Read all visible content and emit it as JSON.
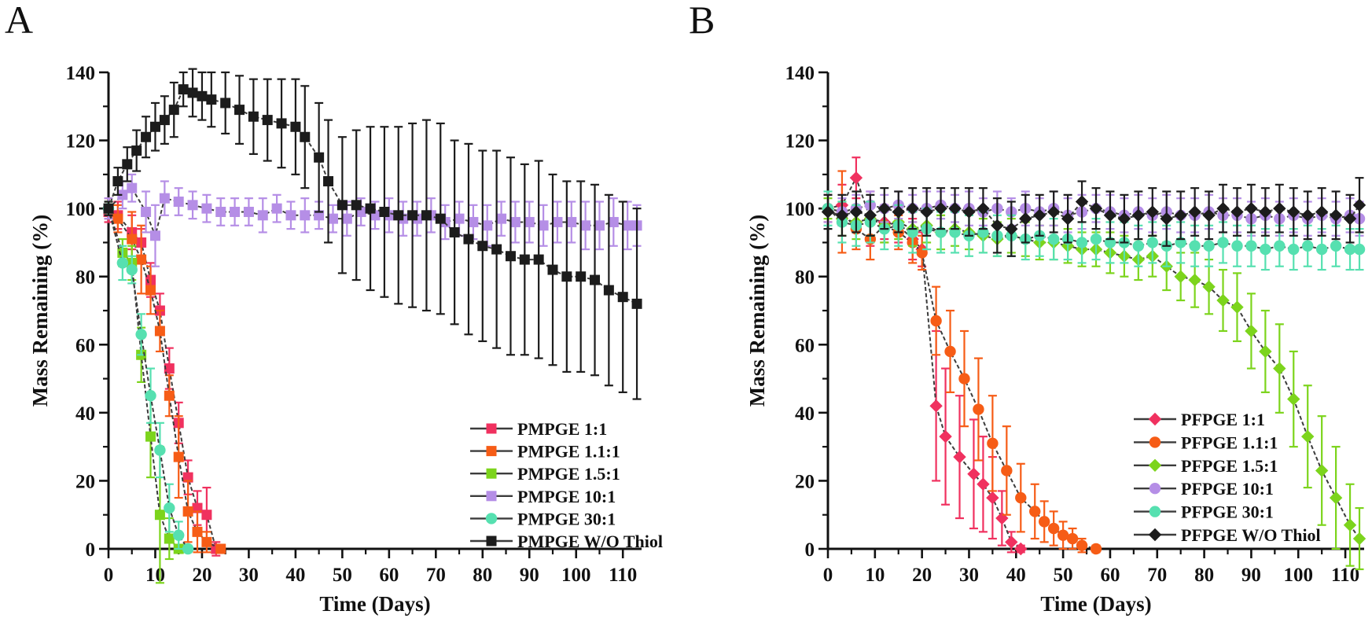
{
  "figure_background": "#ffffff",
  "line_color": "#3c3c3c",
  "chart_data": [
    {
      "type": "line",
      "panel_label": "A",
      "title": "",
      "xlabel": "Time (Days)",
      "ylabel": "Mass Remaining (%)",
      "xlim": [
        0,
        114
      ],
      "ylim": [
        0,
        140
      ],
      "xticks": [
        0,
        10,
        20,
        30,
        40,
        50,
        60,
        70,
        80,
        90,
        100,
        110
      ],
      "yticks": [
        0,
        20,
        40,
        60,
        80,
        100,
        120,
        140
      ],
      "grid": false,
      "legend_position": "inside lower right",
      "series": [
        {
          "name": "PMPGE 1:1",
          "color": "#f0315f",
          "marker": "square",
          "x": [
            0,
            2,
            5,
            7,
            9,
            11,
            13,
            15,
            17,
            19,
            21,
            23
          ],
          "y": [
            99,
            98,
            93,
            90,
            79,
            70,
            53,
            37,
            21,
            12,
            10,
            0
          ],
          "err": [
            3,
            4,
            5,
            4,
            5,
            5,
            6,
            6,
            5,
            5,
            8,
            2
          ]
        },
        {
          "name": "PMPGE 1.1:1",
          "color": "#f65c16",
          "marker": "square",
          "x": [
            0,
            2,
            5,
            7,
            9,
            11,
            13,
            15,
            17,
            19,
            21,
            24
          ],
          "y": [
            100,
            97,
            91,
            85,
            76,
            64,
            45,
            27,
            11,
            5,
            2,
            0
          ],
          "err": [
            3,
            4,
            8,
            10,
            7,
            6,
            6,
            12,
            9,
            6,
            3,
            1
          ]
        },
        {
          "name": "PMPGE 1.5:1",
          "color": "#7cd41c",
          "marker": "square",
          "x": [
            0,
            3,
            5,
            7,
            9,
            11,
            13,
            15
          ],
          "y": [
            100,
            87,
            84,
            57,
            33,
            10,
            3,
            0
          ],
          "err": [
            2,
            4,
            5,
            8,
            12,
            20,
            6,
            1
          ]
        },
        {
          "name": "PMPGE 10:1",
          "color": "#b58ee6",
          "marker": "square",
          "x": [
            0,
            3,
            5,
            8,
            10,
            12,
            15,
            18,
            21,
            24,
            27,
            30,
            33,
            36,
            39,
            42,
            45,
            48,
            51,
            54,
            57,
            60,
            63,
            66,
            69,
            72,
            75,
            78,
            81,
            84,
            87,
            90,
            93,
            96,
            99,
            102,
            105,
            108,
            111,
            113
          ],
          "y": [
            100,
            104,
            106,
            99,
            92,
            103,
            102,
            101,
            100,
            99,
            99,
            99,
            98,
            100,
            98,
            98,
            98,
            97,
            97,
            99,
            98,
            98,
            97,
            97,
            98,
            96,
            97,
            96,
            95,
            97,
            96,
            96,
            95,
            96,
            96,
            95,
            95,
            96,
            95,
            95
          ],
          "err": [
            3,
            4,
            4,
            6,
            9,
            5,
            4,
            4,
            4,
            4,
            4,
            4,
            5,
            4,
            4,
            5,
            4,
            4,
            5,
            4,
            4,
            5,
            5,
            5,
            5,
            5,
            5,
            5,
            6,
            5,
            6,
            6,
            6,
            6,
            6,
            7,
            7,
            7,
            7,
            6
          ]
        },
        {
          "name": "PMPGE 30:1",
          "color": "#56e0b0",
          "marker": "circle",
          "x": [
            0,
            3,
            5,
            7,
            9,
            11,
            13,
            15,
            17
          ],
          "y": [
            100,
            84,
            82,
            63,
            45,
            29,
            12,
            4,
            0
          ],
          "err": [
            2,
            5,
            4,
            6,
            8,
            8,
            7,
            4,
            1
          ]
        },
        {
          "name": "PMPGE W/O Thiol",
          "color": "#1c1c1c",
          "marker": "square",
          "x": [
            0,
            2,
            4,
            6,
            8,
            10,
            12,
            14,
            16,
            18,
            20,
            22,
            25,
            28,
            31,
            34,
            37,
            40,
            42,
            45,
            47,
            50,
            53,
            56,
            59,
            62,
            65,
            68,
            71,
            74,
            77,
            80,
            83,
            86,
            89,
            92,
            95,
            98,
            101,
            104,
            107,
            110,
            113
          ],
          "y": [
            100,
            108,
            113,
            117,
            121,
            124,
            126,
            129,
            135,
            134,
            133,
            132,
            131,
            129,
            127,
            126,
            125,
            124,
            121,
            115,
            108,
            101,
            101,
            100,
            99,
            98,
            98,
            98,
            97,
            93,
            91,
            89,
            88,
            86,
            85,
            85,
            82,
            80,
            80,
            79,
            76,
            74,
            72
          ],
          "err": [
            2,
            4,
            5,
            6,
            6,
            7,
            7,
            8,
            5,
            7,
            7,
            8,
            9,
            10,
            11,
            12,
            13,
            14,
            15,
            16,
            18,
            20,
            22,
            24,
            25,
            26,
            27,
            28,
            28,
            27,
            28,
            28,
            29,
            29,
            28,
            29,
            28,
            28,
            28,
            28,
            28,
            28,
            28
          ]
        }
      ]
    },
    {
      "type": "line",
      "panel_label": "B",
      "title": "",
      "xlabel": "Time (Days)",
      "ylabel": "Mass Remaining (%)",
      "xlim": [
        0,
        114
      ],
      "ylim": [
        0,
        140
      ],
      "xticks": [
        0,
        10,
        20,
        30,
        40,
        50,
        60,
        70,
        80,
        90,
        100,
        110
      ],
      "yticks": [
        0,
        20,
        40,
        60,
        80,
        100,
        120,
        140
      ],
      "grid": false,
      "legend_position": "inside lower right",
      "series": [
        {
          "name": "PFPGE 1:1",
          "color": "#f0315f",
          "marker": "diamond",
          "x": [
            0,
            3,
            6,
            9,
            12,
            15,
            18,
            20,
            23,
            25,
            28,
            31,
            33,
            35,
            37,
            39,
            41
          ],
          "y": [
            100,
            101,
            109,
            97,
            96,
            95,
            91,
            88,
            42,
            33,
            27,
            22,
            19,
            15,
            9,
            2,
            0
          ],
          "err": [
            4,
            6,
            6,
            8,
            5,
            5,
            6,
            5,
            22,
            20,
            18,
            16,
            14,
            12,
            8,
            3,
            1
          ]
        },
        {
          "name": "PFPGE 1.1:1",
          "color": "#f65c16",
          "marker": "circle",
          "x": [
            0,
            3,
            6,
            9,
            12,
            15,
            18,
            20,
            23,
            26,
            29,
            32,
            35,
            38,
            41,
            44,
            46,
            48,
            50,
            52,
            54,
            57
          ],
          "y": [
            100,
            99,
            94,
            91,
            95,
            93,
            90,
            87,
            67,
            58,
            50,
            41,
            31,
            23,
            15,
            11,
            8,
            6,
            4,
            3,
            1,
            0
          ],
          "err": [
            4,
            12,
            6,
            6,
            5,
            5,
            6,
            5,
            10,
            12,
            14,
            15,
            14,
            13,
            10,
            8,
            6,
            5,
            4,
            3,
            2,
            1
          ]
        },
        {
          "name": "PFPGE 1.5:1",
          "color": "#7cd41c",
          "marker": "diamond",
          "x": [
            0,
            3,
            6,
            9,
            12,
            15,
            18,
            21,
            24,
            27,
            30,
            33,
            36,
            39,
            42,
            45,
            48,
            51,
            54,
            57,
            60,
            63,
            66,
            69,
            72,
            75,
            78,
            81,
            84,
            87,
            90,
            93,
            96,
            99,
            102,
            105,
            108,
            111,
            113
          ],
          "y": [
            100,
            97,
            96,
            97,
            95,
            96,
            94,
            95,
            93,
            94,
            93,
            92,
            91,
            92,
            91,
            90,
            90,
            89,
            88,
            88,
            87,
            86,
            85,
            86,
            83,
            80,
            79,
            77,
            73,
            71,
            64,
            58,
            53,
            44,
            33,
            23,
            15,
            7,
            3
          ],
          "err": [
            3,
            5,
            5,
            5,
            5,
            5,
            5,
            5,
            5,
            5,
            5,
            5,
            5,
            5,
            5,
            5,
            5,
            5,
            5,
            5,
            6,
            6,
            6,
            6,
            7,
            7,
            8,
            8,
            9,
            10,
            11,
            12,
            13,
            14,
            15,
            16,
            15,
            12,
            9
          ]
        },
        {
          "name": "PFPGE 10:1",
          "color": "#b58ee6",
          "marker": "circle",
          "x": [
            0,
            3,
            6,
            9,
            12,
            15,
            18,
            21,
            24,
            27,
            30,
            33,
            36,
            39,
            42,
            45,
            48,
            51,
            54,
            57,
            60,
            63,
            66,
            69,
            72,
            75,
            78,
            81,
            84,
            87,
            90,
            93,
            96,
            99,
            102,
            105,
            108,
            111,
            113
          ],
          "y": [
            100,
            99,
            100,
            101,
            100,
            101,
            100,
            100,
            101,
            100,
            100,
            99,
            100,
            99,
            100,
            99,
            100,
            98,
            99,
            100,
            99,
            98,
            99,
            98,
            99,
            98,
            98,
            99,
            98,
            98,
            97,
            98,
            97,
            98,
            97,
            98,
            97,
            98,
            97
          ],
          "err": [
            4,
            4,
            4,
            4,
            4,
            4,
            4,
            5,
            4,
            4,
            5,
            4,
            5,
            4,
            5,
            4,
            5,
            5,
            5,
            4,
            5,
            5,
            5,
            5,
            5,
            5,
            5,
            5,
            5,
            5,
            5,
            5,
            5,
            5,
            5,
            5,
            5,
            5,
            5
          ]
        },
        {
          "name": "PFPGE 30:1",
          "color": "#56e0b0",
          "marker": "circle",
          "x": [
            0,
            3,
            6,
            9,
            12,
            15,
            18,
            21,
            24,
            27,
            30,
            33,
            36,
            39,
            42,
            45,
            48,
            51,
            54,
            57,
            60,
            63,
            66,
            69,
            72,
            75,
            78,
            81,
            84,
            87,
            90,
            93,
            96,
            99,
            102,
            105,
            108,
            111,
            113
          ],
          "y": [
            100,
            96,
            95,
            96,
            94,
            95,
            93,
            94,
            93,
            93,
            92,
            93,
            92,
            92,
            91,
            92,
            91,
            91,
            90,
            91,
            90,
            90,
            89,
            90,
            89,
            90,
            89,
            89,
            90,
            89,
            89,
            88,
            89,
            88,
            89,
            88,
            89,
            88,
            88
          ],
          "err": [
            5,
            6,
            6,
            6,
            6,
            6,
            6,
            6,
            6,
            6,
            6,
            6,
            6,
            6,
            6,
            6,
            6,
            6,
            6,
            6,
            6,
            6,
            6,
            6,
            6,
            6,
            6,
            6,
            6,
            6,
            6,
            6,
            6,
            6,
            6,
            6,
            6,
            6,
            6
          ]
        },
        {
          "name": "PFPGE W/O Thiol",
          "color": "#1c1c1c",
          "marker": "diamond",
          "x": [
            0,
            3,
            6,
            9,
            12,
            15,
            18,
            21,
            24,
            27,
            30,
            33,
            36,
            39,
            42,
            45,
            48,
            51,
            54,
            57,
            60,
            63,
            66,
            69,
            72,
            75,
            78,
            81,
            84,
            87,
            90,
            93,
            96,
            99,
            102,
            105,
            108,
            111,
            113
          ],
          "y": [
            99,
            98,
            99,
            98,
            100,
            99,
            100,
            99,
            100,
            100,
            99,
            100,
            95,
            94,
            97,
            98,
            99,
            97,
            102,
            100,
            98,
            97,
            98,
            99,
            97,
            98,
            99,
            98,
            100,
            99,
            100,
            99,
            100,
            99,
            98,
            99,
            98,
            97,
            101
          ],
          "err": [
            5,
            6,
            6,
            6,
            6,
            6,
            6,
            7,
            6,
            6,
            7,
            6,
            8,
            8,
            7,
            6,
            6,
            7,
            6,
            6,
            7,
            7,
            7,
            7,
            8,
            7,
            7,
            7,
            7,
            7,
            7,
            7,
            7,
            7,
            7,
            7,
            7,
            7,
            8
          ]
        }
      ]
    }
  ]
}
